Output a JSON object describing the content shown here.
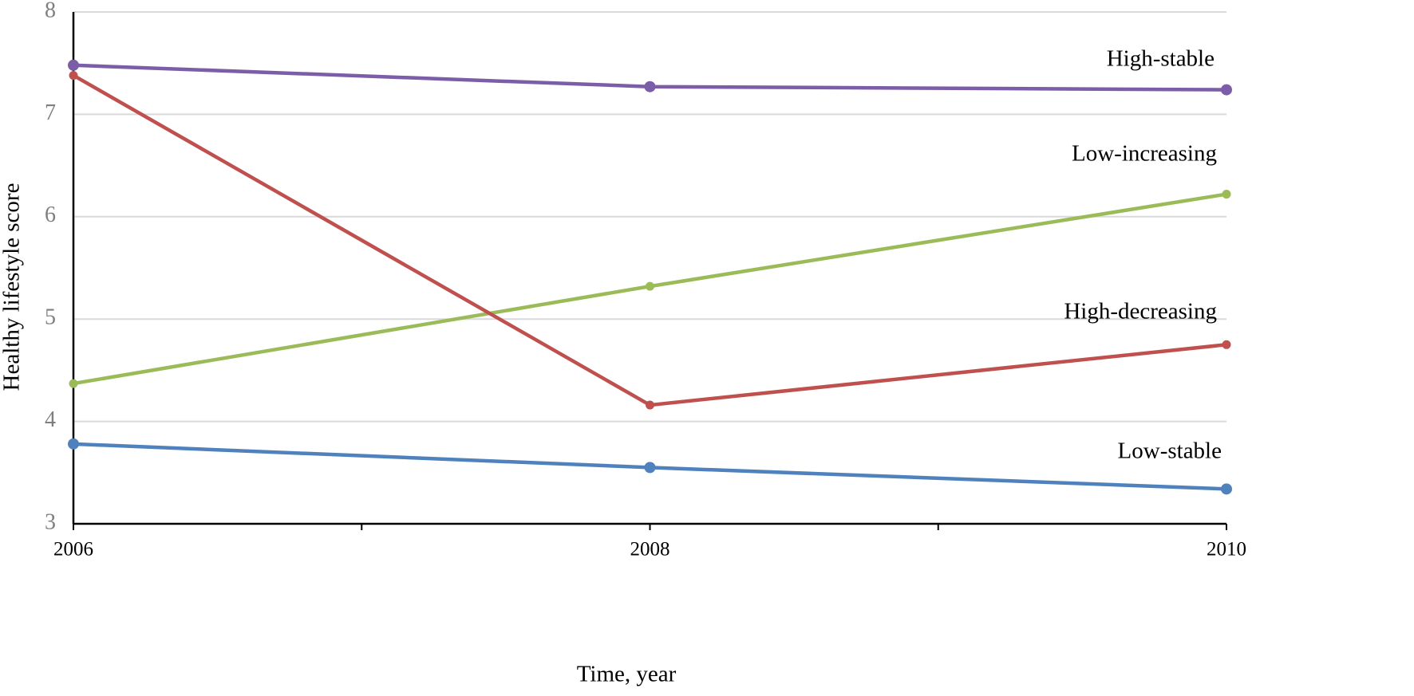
{
  "chart_data": {
    "type": "line",
    "x_label": "Time, year",
    "y_label": "Healthy lifestyle score",
    "xlim": [
      2006,
      2010
    ],
    "xticks": [
      2006,
      2008,
      2010
    ],
    "xminorticks": [
      2007,
      2009
    ],
    "ylim": [
      3,
      8
    ],
    "yticks": [
      3,
      4,
      5,
      6,
      7,
      8
    ],
    "grid": true,
    "x": [
      2006,
      2008,
      2010
    ],
    "series": [
      {
        "name": "High-stable",
        "color": "#7b5ea7",
        "values": [
          7.48,
          7.27,
          7.24
        ]
      },
      {
        "name": "Low-increasing",
        "color": "#9bbb59",
        "values": [
          4.37,
          5.32,
          6.22
        ]
      },
      {
        "name": "High-decreasing",
        "color": "#c0504d",
        "values": [
          7.38,
          4.16,
          4.75
        ]
      },
      {
        "name": "Low-stable",
        "color": "#4f81bd",
        "values": [
          3.78,
          3.55,
          3.34
        ]
      }
    ]
  }
}
